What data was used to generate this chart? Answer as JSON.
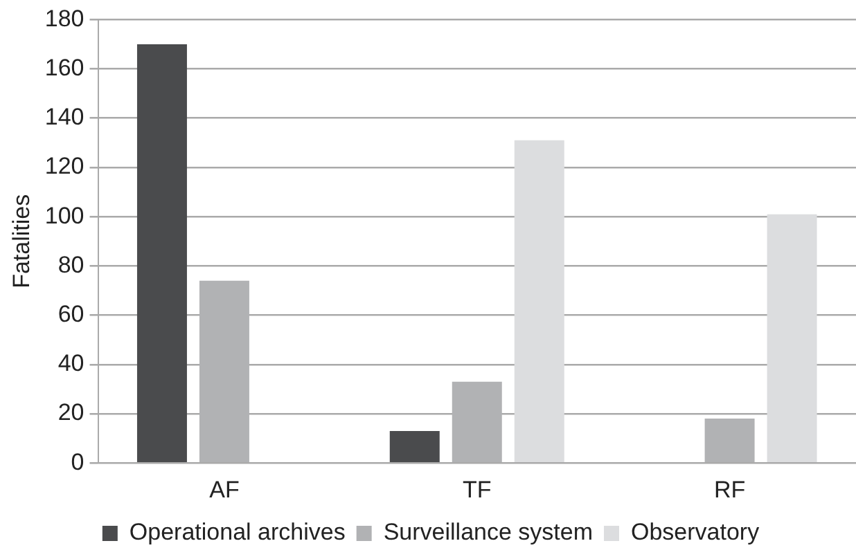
{
  "chart_data": {
    "type": "bar",
    "ylabel": "Fatalities",
    "categories": [
      "AF",
      "TF",
      "RF"
    ],
    "series": [
      {
        "name": "Operational archives",
        "color": "#4a4b4d",
        "values": [
          170,
          13,
          0
        ]
      },
      {
        "name": "Surveillance system",
        "color": "#b1b2b4",
        "values": [
          74,
          33,
          18
        ]
      },
      {
        "name": "Observatory",
        "color": "#dcdddf",
        "values": [
          0,
          131,
          101
        ]
      }
    ],
    "ylim": [
      0,
      180
    ],
    "yticks": [
      0,
      20,
      40,
      60,
      80,
      100,
      120,
      140,
      160,
      180
    ],
    "grid": "y",
    "legend": "bottom"
  }
}
